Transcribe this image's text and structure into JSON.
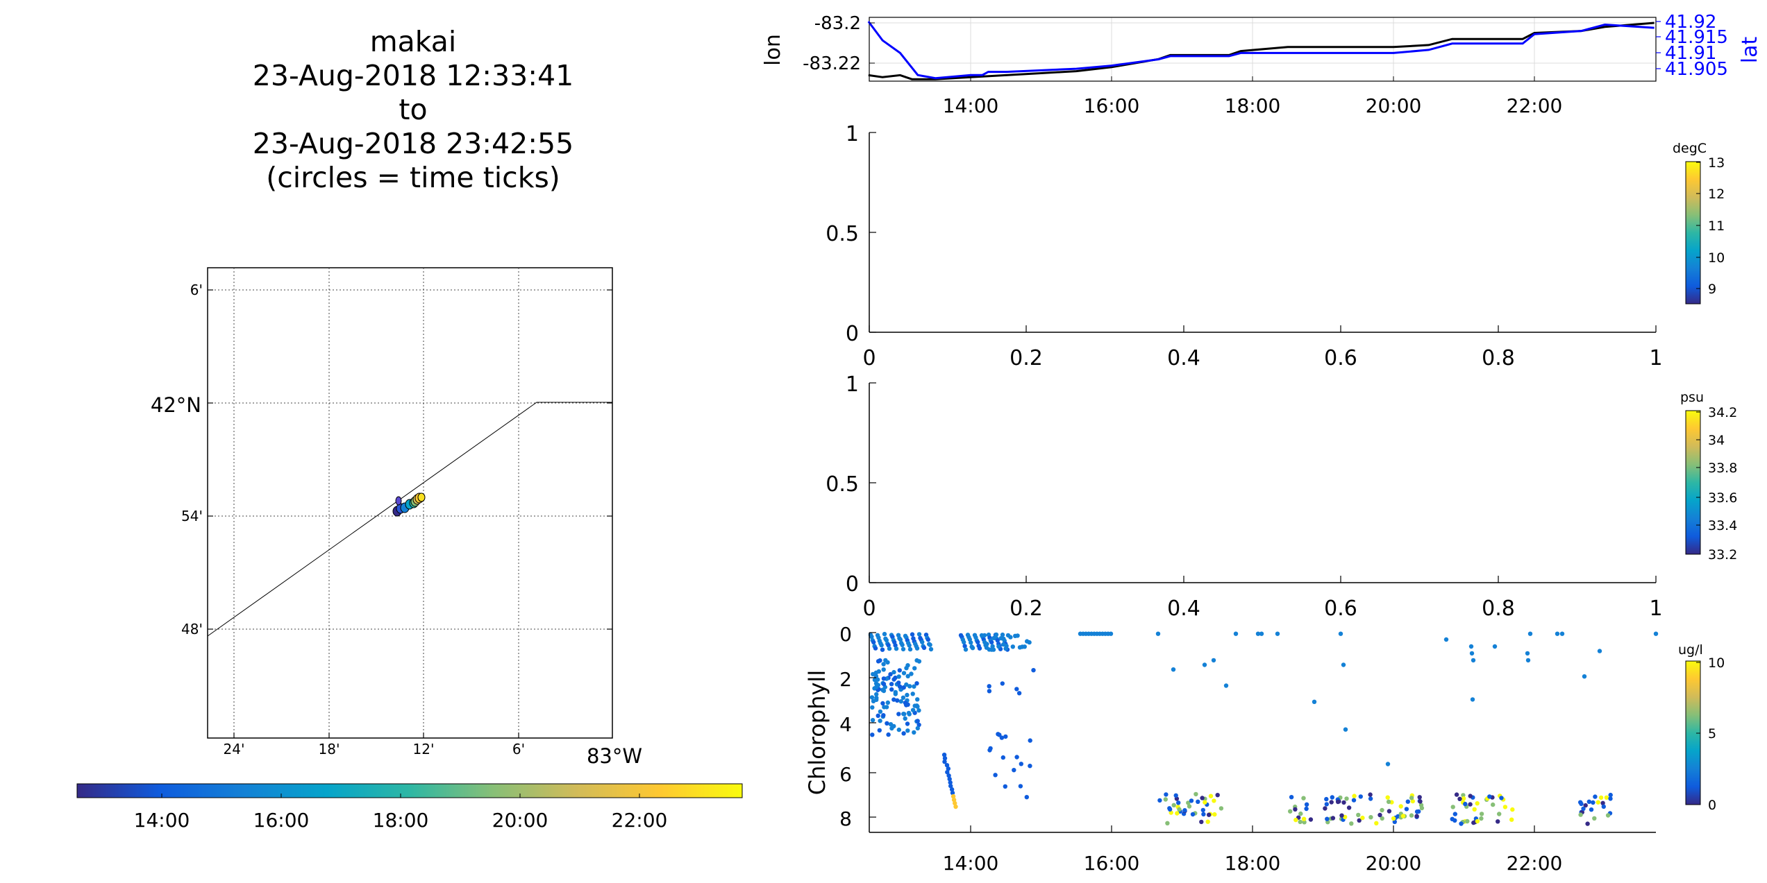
{
  "title": {
    "lines": [
      "makai",
      "23-Aug-2018 12:33:41",
      "to",
      "23-Aug-2018 23:42:55",
      "(circles = time ticks)"
    ]
  },
  "map": {
    "lat_labels": [
      "6'",
      "42°N",
      "54'",
      "48'"
    ],
    "lon_labels": [
      "24'",
      "18'",
      "12'",
      "6'",
      "83°W"
    ]
  },
  "time_colorbar": {
    "labels": [
      "14:00",
      "16:00",
      "18:00",
      "20:00",
      "22:00"
    ]
  },
  "colors": {
    "lon_line": "#000000",
    "lat_line": "#0000ff",
    "parula": [
      "#352a87",
      "#0f5cdd",
      "#1481d6",
      "#06a4ca",
      "#2eb7a4",
      "#87bf77",
      "#d1bb59",
      "#fec832",
      "#f9fb0e"
    ]
  },
  "chart_data": [
    {
      "type": "line",
      "time_ticks": [
        "14:00",
        "16:00",
        "18:00",
        "20:00",
        "22:00"
      ],
      "ylabel": "lon",
      "y2label": "lat",
      "ylim_ticks": [
        "-83.2",
        "-83.22"
      ],
      "y2_ticks": [
        "41.92",
        "41.915",
        "41.91",
        "41.905"
      ],
      "series": [
        {
          "axis": "left",
          "x": [
            "12:33",
            "12:45",
            "13:00",
            "13:10",
            "13:30",
            "14:00",
            "14:30",
            "15:00",
            "15:30",
            "16:00",
            "16:40",
            "16:50",
            "17:40",
            "17:50",
            "18:30",
            "20:00",
            "20:30",
            "20:50",
            "21:50",
            "22:00",
            "22:40",
            "23:00",
            "23:42"
          ],
          "y": [
            -83.226,
            -83.227,
            -83.226,
            -83.228,
            -83.228,
            -83.227,
            -83.226,
            -83.225,
            -83.224,
            -83.222,
            -83.218,
            -83.216,
            -83.216,
            -83.214,
            -83.212,
            -83.212,
            -83.211,
            -83.208,
            -83.208,
            -83.205,
            -83.204,
            -83.202,
            -83.2
          ]
        },
        {
          "axis": "right",
          "x": [
            "12:33",
            "12:45",
            "13:00",
            "13:15",
            "13:30",
            "14:00",
            "14:10",
            "14:15",
            "14:30",
            "15:30",
            "16:00",
            "16:40",
            "16:50",
            "17:40",
            "17:50",
            "18:30",
            "20:00",
            "20:30",
            "20:50",
            "21:50",
            "22:00",
            "22:40",
            "23:00",
            "23:42"
          ],
          "y": [
            41.92,
            41.914,
            41.91,
            41.903,
            41.902,
            41.903,
            41.903,
            41.904,
            41.904,
            41.905,
            41.906,
            41.908,
            41.909,
            41.909,
            41.91,
            41.91,
            41.91,
            41.911,
            41.913,
            41.913,
            41.916,
            41.917,
            41.919,
            41.918
          ]
        }
      ]
    },
    {
      "type": "scatter",
      "x_ticks": [
        "0",
        "0.2",
        "0.4",
        "0.6",
        "0.8",
        "1"
      ],
      "y_ticks": [
        "1",
        "0.5",
        "0"
      ],
      "colorbar_unit": "degC",
      "colorbar_ticks": [
        "13",
        "12",
        "11",
        "10",
        "9"
      ],
      "colorbar_range": [
        8.5,
        13.2
      ]
    },
    {
      "type": "scatter",
      "x_ticks": [
        "0",
        "0.2",
        "0.4",
        "0.6",
        "0.8",
        "1"
      ],
      "y_ticks": [
        "1",
        "0.5",
        "0"
      ],
      "colorbar_unit": "psu",
      "colorbar_ticks": [
        "34.2",
        "34",
        "33.8",
        "33.6",
        "33.4",
        "33.2"
      ],
      "colorbar_range": [
        33.15,
        34.2
      ]
    },
    {
      "type": "scatter",
      "ylabel": "Chlorophyll",
      "y_ticks": [
        "0",
        "2",
        "4",
        "6",
        "8"
      ],
      "ylim": [
        0,
        8.7
      ],
      "x_ticks": [
        "14:00",
        "16:00",
        "18:00",
        "20:00",
        "22:00"
      ],
      "colorbar_unit": "ug/l",
      "colorbar_ticks": [
        "10",
        "5",
        "0"
      ],
      "colorbar_range": [
        0,
        10
      ]
    }
  ]
}
